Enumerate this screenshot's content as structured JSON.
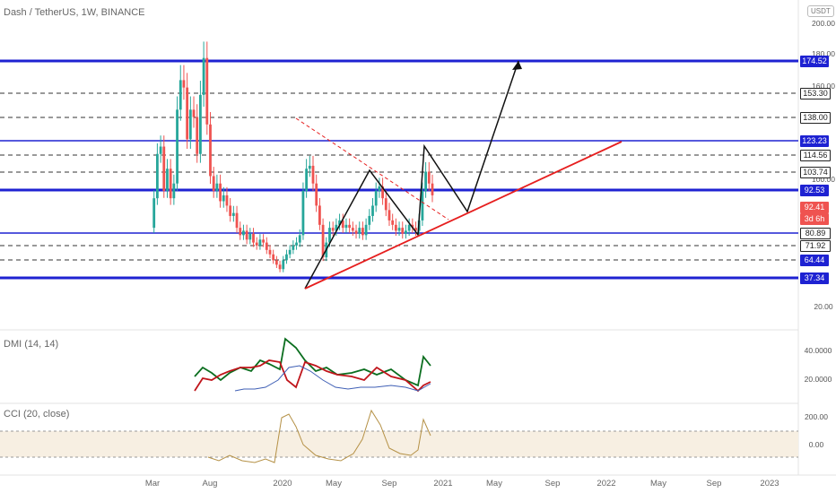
{
  "header": {
    "title": "Dash / TetherUS, 1W, BINANCE",
    "currency": "USDT"
  },
  "price_axis": {
    "ticks": [
      "200.00",
      "180.00",
      "160.00",
      "100.00",
      "20.00"
    ]
  },
  "price_badges": [
    {
      "label": "174.52",
      "color": "#1e22d2"
    },
    {
      "label": "153.30",
      "color": "#ffffff"
    },
    {
      "label": "138.00",
      "color": "#ffffff"
    },
    {
      "label": "123.23",
      "color": "#1e22d2"
    },
    {
      "label": "114.56",
      "color": "#ffffff"
    },
    {
      "label": "103.74",
      "color": "#ffffff"
    },
    {
      "label": "92.53",
      "color": "#1e22d2"
    },
    {
      "label": "92.41",
      "color": "#ef5350"
    },
    {
      "label": "3d 6h",
      "color": "#ef5350"
    },
    {
      "label": "80.89",
      "color": "#ffffff"
    },
    {
      "label": "71.92",
      "color": "#ffffff"
    },
    {
      "label": "64.44",
      "color": "#1e22d2"
    },
    {
      "label": "37.34",
      "color": "#1e22d2"
    }
  ],
  "dmi": {
    "label": "DMI (14, 14)",
    "ticks": [
      "40.0000",
      "20.0000"
    ]
  },
  "cci": {
    "label": "CCI (20, close)",
    "ticks": [
      "200.00",
      "0.00"
    ]
  },
  "time_axis": [
    "Mar",
    "Aug",
    "2020",
    "May",
    "Sep",
    "2021",
    "May",
    "Sep",
    "2022",
    "May",
    "Sep",
    "2023"
  ],
  "chart_data": {
    "type": "candlestick",
    "title": "Dash / TetherUS, 1W, BINANCE",
    "horizontal_levels": [
      174.52,
      153.3,
      138.0,
      123.23,
      114.56,
      103.74,
      92.53,
      92.41,
      80.89,
      71.92,
      64.44,
      37.34
    ],
    "weekly_closes_approx": [
      70,
      90,
      120,
      125,
      95,
      110,
      90,
      100,
      150,
      170,
      165,
      130,
      150,
      145,
      120,
      160,
      185,
      140,
      105,
      95,
      100,
      88,
      92,
      85,
      78,
      80,
      70,
      65,
      68,
      62,
      66,
      60,
      58,
      62,
      60,
      55,
      52,
      48,
      45,
      42,
      48,
      52,
      55,
      58,
      60,
      65,
      95,
      110,
      112,
      100,
      85,
      72,
      50,
      60,
      70,
      68,
      72,
      75,
      70,
      72,
      70,
      68,
      66,
      70,
      65,
      72,
      78,
      85,
      95,
      98,
      90,
      82,
      75,
      72,
      68,
      70,
      66,
      68,
      72,
      70,
      68,
      75,
      95,
      108,
      100,
      92
    ],
    "dmi_series": [
      {
        "name": "+DI",
        "color": "#0b6e1f"
      },
      {
        "name": "-DI",
        "color": "#c0151b"
      },
      {
        "name": "ADX",
        "color": "#3f5fb5"
      }
    ],
    "cci_series": {
      "color": "#b59146"
    }
  }
}
